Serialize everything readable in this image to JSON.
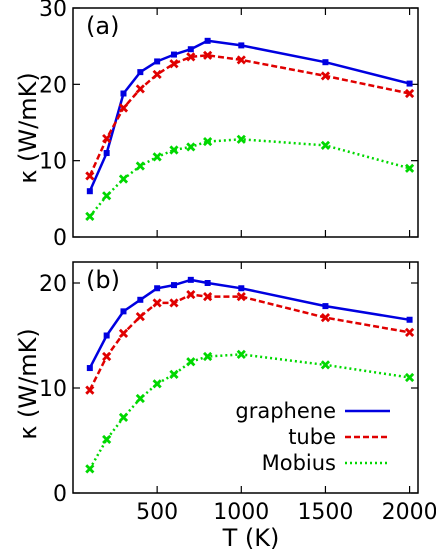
{
  "figure": {
    "xlabel": "T (K)",
    "ylabel": "κ  (W/mK)"
  },
  "legend": [
    {
      "name": "graphene",
      "color": "#0000e0",
      "dash": ""
    },
    {
      "name": "tube",
      "color": "#e00000",
      "dash": "6,3"
    },
    {
      "name": "Mobius",
      "color": "#00d800",
      "dash": "2,3"
    }
  ],
  "chart_data": [
    {
      "type": "line",
      "panel_label": "(a)",
      "xlabel": "T (K)",
      "ylabel": "κ  (W/mK)",
      "xlim": [
        0,
        2050
      ],
      "ylim": [
        0,
        30
      ],
      "xticks": [
        500,
        1000,
        1500,
        2000
      ],
      "yticks": [
        0,
        10,
        20,
        30
      ],
      "grid": false,
      "x": [
        100,
        200,
        300,
        400,
        500,
        600,
        700,
        800,
        1000,
        1500,
        2000
      ],
      "series": [
        {
          "name": "graphene",
          "color": "#0000e0",
          "marker": "square",
          "values": [
            6.0,
            11.0,
            18.8,
            21.6,
            23.0,
            23.9,
            24.6,
            25.7,
            25.1,
            22.9,
            20.1
          ]
        },
        {
          "name": "tube",
          "color": "#e00000",
          "marker": "x",
          "values": [
            8.0,
            12.9,
            16.9,
            19.4,
            21.3,
            22.7,
            23.6,
            23.8,
            23.2,
            21.1,
            18.8
          ]
        },
        {
          "name": "Mobius",
          "color": "#00d800",
          "marker": "x",
          "values": [
            2.7,
            5.4,
            7.6,
            9.3,
            10.5,
            11.4,
            11.8,
            12.5,
            12.8,
            12.0,
            9.0
          ]
        }
      ]
    },
    {
      "type": "line",
      "panel_label": "(b)",
      "xlabel": "T (K)",
      "ylabel": "κ  (W/mK)",
      "xlim": [
        0,
        2050
      ],
      "ylim": [
        0,
        22
      ],
      "xticks": [
        500,
        1000,
        1500,
        2000
      ],
      "yticks": [
        0,
        10,
        20
      ],
      "grid": false,
      "legend_position": "bottom-right",
      "x": [
        100,
        200,
        300,
        400,
        500,
        600,
        700,
        800,
        1000,
        1500,
        2000
      ],
      "series": [
        {
          "name": "graphene",
          "color": "#0000e0",
          "marker": "square",
          "values": [
            11.9,
            15.0,
            17.3,
            18.4,
            19.5,
            19.8,
            20.3,
            20.0,
            19.5,
            17.8,
            16.5
          ]
        },
        {
          "name": "tube",
          "color": "#e00000",
          "marker": "x",
          "values": [
            9.8,
            13.0,
            15.2,
            16.8,
            18.1,
            18.1,
            18.9,
            18.7,
            18.7,
            16.7,
            15.3
          ]
        },
        {
          "name": "Mobius",
          "color": "#00d800",
          "marker": "x",
          "values": [
            2.3,
            5.1,
            7.2,
            9.0,
            10.4,
            11.3,
            12.5,
            13.0,
            13.2,
            12.2,
            11.0
          ]
        }
      ]
    }
  ]
}
